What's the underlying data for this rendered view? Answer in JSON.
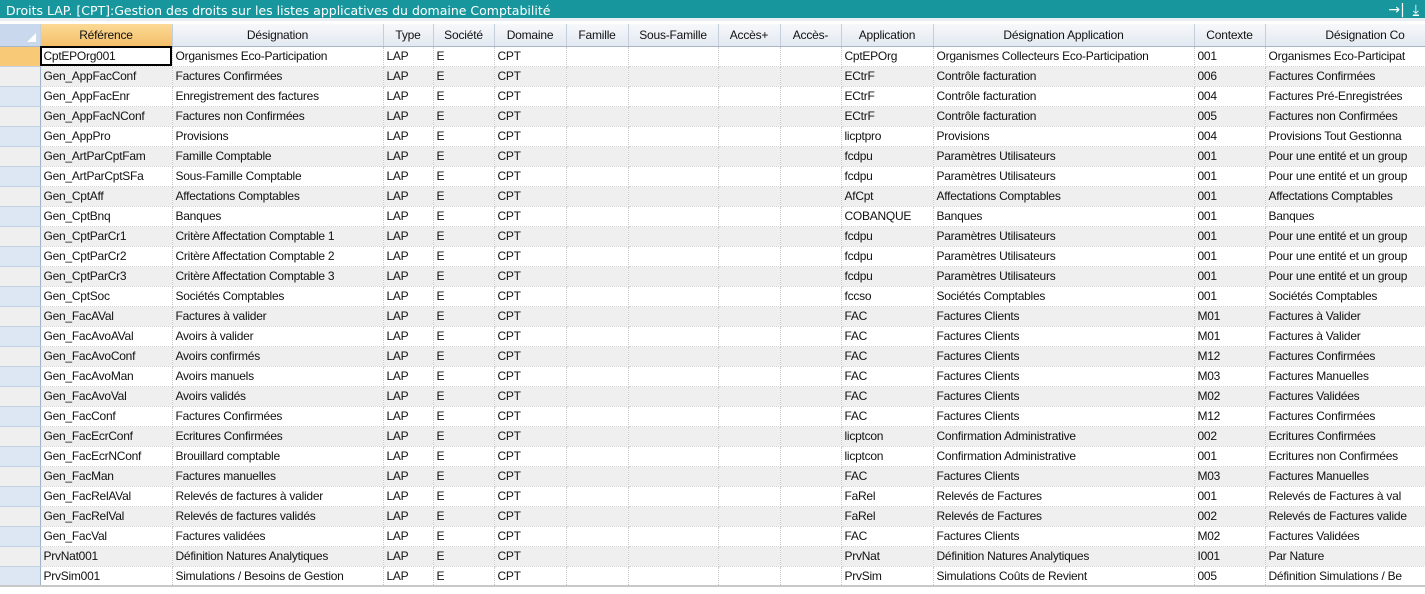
{
  "window": {
    "title": "Droits LAP. [CPT]:Gestion des droits sur les listes applicatives du domaine Comptabilité",
    "icons": [
      "goto-end-icon",
      "download-icon"
    ],
    "icon_glyphs": [
      "→|",
      "⤓"
    ]
  },
  "accent_color": "#17979d",
  "columns": [
    "Référence",
    "Désignation",
    "Type",
    "Société",
    "Domaine",
    "Famille",
    "Sous-Famille",
    "Accès+",
    "Accès-",
    "Application",
    "Désignation Application",
    "Contexte",
    "Désignation Co"
  ],
  "rows": [
    [
      "CptEPOrg001",
      "Organismes Eco-Participation",
      "LAP",
      "E",
      "CPT",
      "",
      "",
      "",
      "",
      "CptEPOrg",
      "Organismes Collecteurs Eco-Participation",
      "001",
      "Organismes Eco-Participat"
    ],
    [
      "Gen_AppFacConf",
      "Factures Confirmées",
      "LAP",
      "E",
      "CPT",
      "",
      "",
      "",
      "",
      "ECtrF",
      "Contrôle facturation",
      "006",
      "Factures Confirmées"
    ],
    [
      "Gen_AppFacEnr",
      "Enregistrement des factures",
      "LAP",
      "E",
      "CPT",
      "",
      "",
      "",
      "",
      "ECtrF",
      "Contrôle facturation",
      "004",
      "Factures Pré-Enregistrées"
    ],
    [
      "Gen_AppFacNConf",
      "Factures non Confirmées",
      "LAP",
      "E",
      "CPT",
      "",
      "",
      "",
      "",
      "ECtrF",
      "Contrôle facturation",
      "005",
      "Factures non Confirmées"
    ],
    [
      "Gen_AppPro",
      "Provisions",
      "LAP",
      "E",
      "CPT",
      "",
      "",
      "",
      "",
      "licptpro",
      "Provisions",
      "004",
      "Provisions Tout Gestionna"
    ],
    [
      "Gen_ArtParCptFam",
      "Famille Comptable",
      "LAP",
      "E",
      "CPT",
      "",
      "",
      "",
      "",
      "fcdpu",
      "Paramètres Utilisateurs",
      "001",
      "Pour une entité et un group"
    ],
    [
      "Gen_ArtParCptSFa",
      "Sous-Famille Comptable",
      "LAP",
      "E",
      "CPT",
      "",
      "",
      "",
      "",
      "fcdpu",
      "Paramètres Utilisateurs",
      "001",
      "Pour une entité et un group"
    ],
    [
      "Gen_CptAff",
      "Affectations Comptables",
      "LAP",
      "E",
      "CPT",
      "",
      "",
      "",
      "",
      "AfCpt",
      "Affectations Comptables",
      "001",
      "Affectations Comptables"
    ],
    [
      "Gen_CptBnq",
      "Banques",
      "LAP",
      "E",
      "CPT",
      "",
      "",
      "",
      "",
      "COBANQUE",
      "Banques",
      "001",
      "Banques"
    ],
    [
      "Gen_CptParCr1",
      "Critère Affectation Comptable 1",
      "LAP",
      "E",
      "CPT",
      "",
      "",
      "",
      "",
      "fcdpu",
      "Paramètres Utilisateurs",
      "001",
      "Pour une entité et un group"
    ],
    [
      "Gen_CptParCr2",
      "Critère Affectation Comptable 2",
      "LAP",
      "E",
      "CPT",
      "",
      "",
      "",
      "",
      "fcdpu",
      "Paramètres Utilisateurs",
      "001",
      "Pour une entité et un group"
    ],
    [
      "Gen_CptParCr3",
      "Critère Affectation Comptable 3",
      "LAP",
      "E",
      "CPT",
      "",
      "",
      "",
      "",
      "fcdpu",
      "Paramètres Utilisateurs",
      "001",
      "Pour une entité et un group"
    ],
    [
      "Gen_CptSoc",
      "Sociétés Comptables",
      "LAP",
      "E",
      "CPT",
      "",
      "",
      "",
      "",
      "fccso",
      "Sociétés Comptables",
      "001",
      "Sociétés Comptables"
    ],
    [
      "Gen_FacAVal",
      "Factures à valider",
      "LAP",
      "E",
      "CPT",
      "",
      "",
      "",
      "",
      "FAC",
      "Factures Clients",
      "M01",
      "Factures à Valider"
    ],
    [
      "Gen_FacAvoAVal",
      "Avoirs à valider",
      "LAP",
      "E",
      "CPT",
      "",
      "",
      "",
      "",
      "FAC",
      "Factures Clients",
      "M01",
      "Factures à Valider"
    ],
    [
      "Gen_FacAvoConf",
      "Avoirs confirmés",
      "LAP",
      "E",
      "CPT",
      "",
      "",
      "",
      "",
      "FAC",
      "Factures Clients",
      "M12",
      "Factures Confirmées"
    ],
    [
      "Gen_FacAvoMan",
      "Avoirs manuels",
      "LAP",
      "E",
      "CPT",
      "",
      "",
      "",
      "",
      "FAC",
      "Factures Clients",
      "M03",
      "Factures Manuelles"
    ],
    [
      "Gen_FacAvoVal",
      "Avoirs validés",
      "LAP",
      "E",
      "CPT",
      "",
      "",
      "",
      "",
      "FAC",
      "Factures Clients",
      "M02",
      "Factures Validées"
    ],
    [
      "Gen_FacConf",
      "Factures Confirmées",
      "LAP",
      "E",
      "CPT",
      "",
      "",
      "",
      "",
      "FAC",
      "Factures Clients",
      "M12",
      "Factures Confirmées"
    ],
    [
      "Gen_FacEcrConf",
      "Ecritures Confirmées",
      "LAP",
      "E",
      "CPT",
      "",
      "",
      "",
      "",
      "licptcon",
      "Confirmation Administrative",
      "002",
      "Ecritures Confirmées"
    ],
    [
      "Gen_FacEcrNConf",
      "Brouillard comptable",
      "LAP",
      "E",
      "CPT",
      "",
      "",
      "",
      "",
      "licptcon",
      "Confirmation Administrative",
      "001",
      "Ecritures non Confirmées"
    ],
    [
      "Gen_FacMan",
      "Factures manuelles",
      "LAP",
      "E",
      "CPT",
      "",
      "",
      "",
      "",
      "FAC",
      "Factures Clients",
      "M03",
      "Factures Manuelles"
    ],
    [
      "Gen_FacRelAVal",
      "Relevés de factures à valider",
      "LAP",
      "E",
      "CPT",
      "",
      "",
      "",
      "",
      "FaRel",
      "Relevés de Factures",
      "001",
      "Relevés de Factures à val"
    ],
    [
      "Gen_FacRelVal",
      "Relevés de factures validés",
      "LAP",
      "E",
      "CPT",
      "",
      "",
      "",
      "",
      "FaRel",
      "Relevés de Factures",
      "002",
      "Relevés de Factures valide"
    ],
    [
      "Gen_FacVal",
      "Factures validées",
      "LAP",
      "E",
      "CPT",
      "",
      "",
      "",
      "",
      "FAC",
      "Factures Clients",
      "M02",
      "Factures Validées"
    ],
    [
      "PrvNat001",
      "Définition Natures Analytiques",
      "LAP",
      "E",
      "CPT",
      "",
      "",
      "",
      "",
      "PrvNat",
      "Définition Natures Analytiques",
      "I001",
      "Par Nature"
    ],
    [
      "PrvSim001",
      "Simulations / Besoins de Gestion",
      "LAP",
      "E",
      "CPT",
      "",
      "",
      "",
      "",
      "PrvSim",
      "Simulations Coûts de Revient",
      "005",
      "Définition Simulations / Be"
    ]
  ]
}
